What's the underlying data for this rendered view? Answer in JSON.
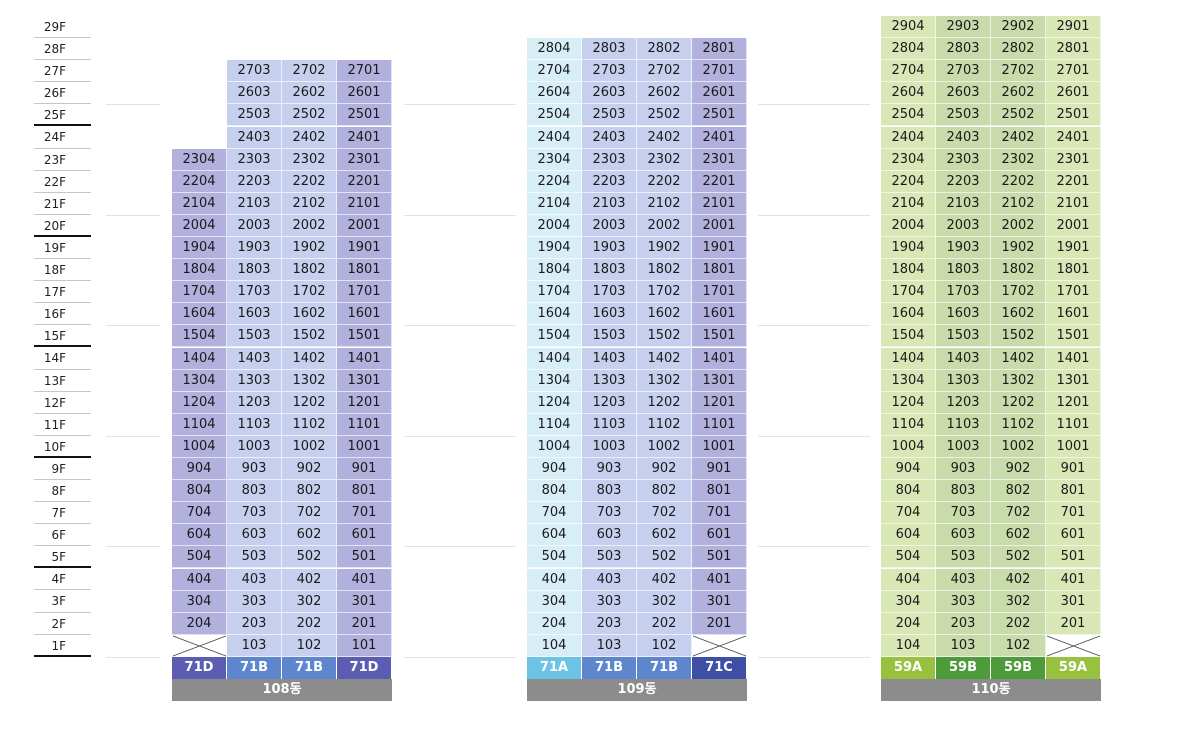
{
  "floors": [
    "29F",
    "28F",
    "27F",
    "26F",
    "25F",
    "24F",
    "23F",
    "22F",
    "21F",
    "20F",
    "19F",
    "18F",
    "17F",
    "16F",
    "15F",
    "14F",
    "13F",
    "12F",
    "11F",
    "10F",
    "9F",
    "8F",
    "7F",
    "6F",
    "5F",
    "4F",
    "3F",
    "2F",
    "1F"
  ],
  "buildings": [
    {
      "name": "108동",
      "top_floor": 27,
      "columns": [
        {
          "line": "04",
          "type": "71D",
          "type_color": "#5c5cb3",
          "cell_color": "#b2b0dd",
          "top_floor": 23,
          "first_floor_unit": null
        },
        {
          "line": "03",
          "type": "71B",
          "type_color": "#5d86cf",
          "cell_color": "#c6d0ee",
          "top_floor": 27,
          "first_floor_unit": "103"
        },
        {
          "line": "02",
          "type": "71B",
          "type_color": "#5d86cf",
          "cell_color": "#c6d0ee",
          "top_floor": 27,
          "first_floor_unit": "102"
        },
        {
          "line": "01",
          "type": "71D",
          "type_color": "#5c5cb3",
          "cell_color": "#b2b0dd",
          "top_floor": 27,
          "first_floor_unit": "101"
        }
      ]
    },
    {
      "name": "109동",
      "top_floor": 28,
      "columns": [
        {
          "line": "04",
          "type": "71A",
          "type_color": "#6cc3e3",
          "cell_color": "#d7eef7",
          "top_floor": 28,
          "first_floor_unit": "104"
        },
        {
          "line": "03",
          "type": "71B",
          "type_color": "#5d86cf",
          "cell_color": "#c6d0ee",
          "top_floor": 28,
          "first_floor_unit": "103"
        },
        {
          "line": "02",
          "type": "71B",
          "type_color": "#5d86cf",
          "cell_color": "#c6d0ee",
          "top_floor": 28,
          "first_floor_unit": "102"
        },
        {
          "line": "01",
          "type": "71C",
          "type_color": "#3e4fa6",
          "cell_color": "#b2b0dd",
          "top_floor": 28,
          "first_floor_unit": null
        }
      ]
    },
    {
      "name": "110동",
      "top_floor": 29,
      "columns": [
        {
          "line": "04",
          "type": "59A",
          "type_color": "#97c13f",
          "cell_color": "#d9e6b5",
          "top_floor": 29,
          "first_floor_unit": "104"
        },
        {
          "line": "03",
          "type": "59B",
          "type_color": "#4d9b3a",
          "cell_color": "#c9dbaa",
          "top_floor": 29,
          "first_floor_unit": "103"
        },
        {
          "line": "02",
          "type": "59B",
          "type_color": "#4d9b3a",
          "cell_color": "#c9dbaa",
          "top_floor": 29,
          "first_floor_unit": "102"
        },
        {
          "line": "01",
          "type": "59A",
          "type_color": "#97c13f",
          "cell_color": "#d9e6b5",
          "top_floor": 29,
          "first_floor_unit": null
        }
      ]
    }
  ]
}
